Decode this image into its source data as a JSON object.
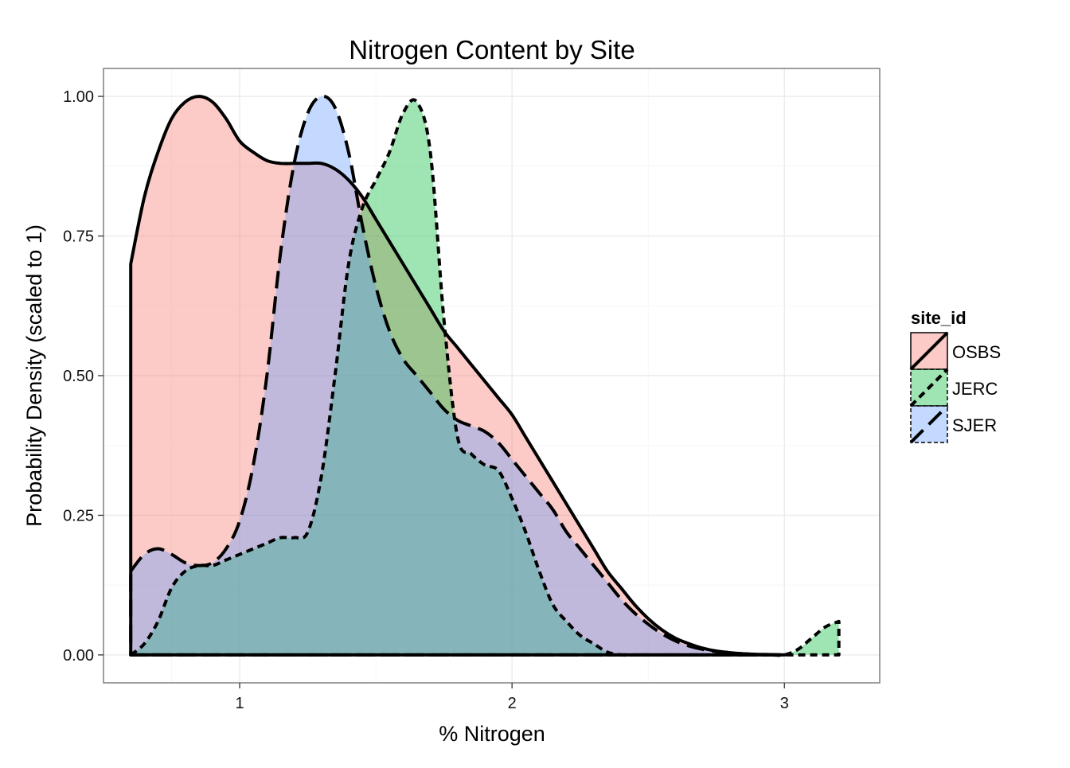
{
  "chart_data": {
    "type": "area",
    "title": "Nitrogen Content by Site",
    "xlabel": "% Nitrogen",
    "ylabel": "Probability Density (scaled to 1)",
    "xlim": [
      0.5,
      3.35
    ],
    "ylim": [
      -0.05,
      1.05
    ],
    "x_ticks": [
      1,
      2,
      3
    ],
    "x_tick_labels": [
      "1",
      "2",
      "3"
    ],
    "y_ticks": [
      0,
      0.25,
      0.5,
      0.75,
      1
    ],
    "y_tick_labels": [
      "0.00",
      "0.25",
      "0.50",
      "0.75",
      "1.00"
    ],
    "grid": true,
    "legend": {
      "title": "site_id",
      "placement": "right"
    },
    "series": [
      {
        "name": "OSBS",
        "color": "#f8766d",
        "line_style": "solid",
        "x": [
          0.6,
          0.65,
          0.7,
          0.75,
          0.8,
          0.85,
          0.9,
          0.95,
          1.0,
          1.05,
          1.1,
          1.15,
          1.2,
          1.25,
          1.3,
          1.35,
          1.4,
          1.45,
          1.5,
          1.55,
          1.6,
          1.65,
          1.7,
          1.75,
          1.8,
          1.85,
          1.9,
          1.95,
          2.0,
          2.05,
          2.1,
          2.15,
          2.2,
          2.25,
          2.3,
          2.35,
          2.4,
          2.45,
          2.5,
          2.55,
          2.6,
          2.65,
          2.7,
          2.75,
          2.8,
          2.85,
          2.9,
          2.95,
          3.0
        ],
        "y": [
          0.7,
          0.82,
          0.9,
          0.96,
          0.99,
          1.0,
          0.99,
          0.96,
          0.92,
          0.9,
          0.885,
          0.88,
          0.88,
          0.88,
          0.88,
          0.87,
          0.85,
          0.82,
          0.78,
          0.74,
          0.7,
          0.66,
          0.62,
          0.58,
          0.55,
          0.52,
          0.49,
          0.46,
          0.43,
          0.39,
          0.35,
          0.31,
          0.27,
          0.23,
          0.19,
          0.15,
          0.12,
          0.09,
          0.065,
          0.045,
          0.03,
          0.02,
          0.012,
          0.007,
          0.004,
          0.002,
          0.001,
          0.0005,
          0.0
        ]
      },
      {
        "name": "JERC",
        "color": "#00ba38",
        "line_style": "dashed",
        "x": [
          0.6,
          0.65,
          0.7,
          0.75,
          0.8,
          0.85,
          0.9,
          0.95,
          1.0,
          1.05,
          1.1,
          1.15,
          1.2,
          1.25,
          1.3,
          1.35,
          1.4,
          1.45,
          1.5,
          1.55,
          1.6,
          1.65,
          1.7,
          1.75,
          1.8,
          1.85,
          1.9,
          1.95,
          2.0,
          2.05,
          2.1,
          2.15,
          2.2,
          2.25,
          2.3,
          2.35,
          2.4,
          2.45,
          2.5,
          2.55,
          2.6,
          2.65,
          2.7,
          2.75,
          2.8,
          2.85,
          2.9,
          2.95,
          3.0,
          3.05,
          3.1,
          3.15,
          3.2
        ],
        "y": [
          0.0,
          0.02,
          0.06,
          0.12,
          0.15,
          0.16,
          0.16,
          0.17,
          0.18,
          0.19,
          0.2,
          0.21,
          0.21,
          0.22,
          0.32,
          0.5,
          0.7,
          0.8,
          0.85,
          0.9,
          0.97,
          0.99,
          0.9,
          0.6,
          0.39,
          0.36,
          0.34,
          0.33,
          0.28,
          0.22,
          0.15,
          0.09,
          0.06,
          0.035,
          0.02,
          0.005,
          0.0,
          0.0,
          0.0,
          0.0,
          0.0,
          0.0,
          0.0,
          0.0,
          0.0,
          0.0,
          0.0,
          0.0,
          0.0,
          0.01,
          0.03,
          0.05,
          0.06
        ]
      },
      {
        "name": "SJER",
        "color": "#619cff",
        "line_style": "longdash",
        "x": [
          0.6,
          0.65,
          0.7,
          0.75,
          0.8,
          0.85,
          0.9,
          0.95,
          1.0,
          1.05,
          1.1,
          1.15,
          1.2,
          1.25,
          1.3,
          1.35,
          1.4,
          1.45,
          1.5,
          1.55,
          1.6,
          1.65,
          1.7,
          1.75,
          1.8,
          1.85,
          1.9,
          1.95,
          2.0,
          2.05,
          2.1,
          2.15,
          2.2,
          2.25,
          2.3,
          2.35,
          2.4,
          2.45,
          2.5,
          2.55,
          2.6,
          2.65,
          2.7,
          2.75,
          2.8,
          2.85,
          2.9,
          2.95,
          3.0
        ],
        "y": [
          0.15,
          0.18,
          0.19,
          0.18,
          0.165,
          0.16,
          0.165,
          0.19,
          0.24,
          0.34,
          0.5,
          0.72,
          0.88,
          0.97,
          1.0,
          0.98,
          0.9,
          0.77,
          0.66,
          0.58,
          0.53,
          0.5,
          0.47,
          0.44,
          0.42,
          0.41,
          0.4,
          0.38,
          0.35,
          0.32,
          0.29,
          0.26,
          0.22,
          0.19,
          0.16,
          0.13,
          0.1,
          0.075,
          0.055,
          0.038,
          0.025,
          0.016,
          0.01,
          0.006,
          0.004,
          0.002,
          0.001,
          0.0005,
          0.0
        ]
      }
    ]
  }
}
